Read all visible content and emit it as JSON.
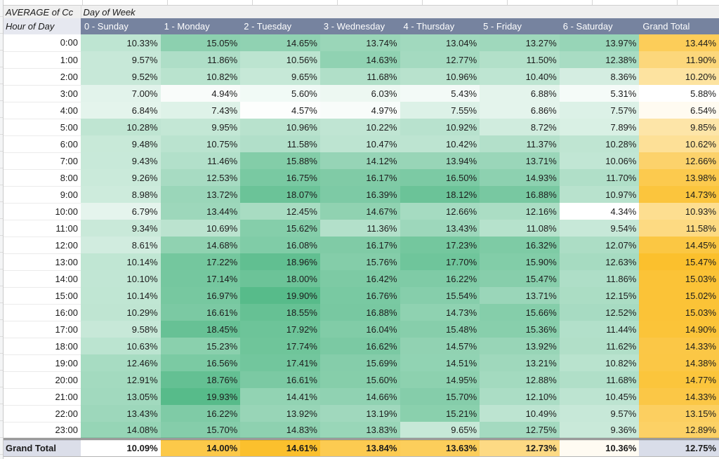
{
  "title": {
    "left": "AVERAGE of Cc",
    "right": "Day of Week"
  },
  "pivot": {
    "corner_header": "Hour of Day",
    "col_headers": [
      "0 - Sunday",
      "1 - Monday",
      "2 - Tuesday",
      "3 - Wednesday",
      "4 - Thursday",
      "5 - Friday",
      "6 - Saturday",
      "Grand Total"
    ],
    "value_format": "percent-2dp",
    "rows": [
      {
        "label": "0:00",
        "values": [
          10.33,
          15.05,
          14.65,
          13.74,
          13.04,
          13.27,
          13.97
        ],
        "total": 13.44
      },
      {
        "label": "1:00",
        "values": [
          9.57,
          11.86,
          10.56,
          14.63,
          12.77,
          11.5,
          12.38
        ],
        "total": 11.9
      },
      {
        "label": "2:00",
        "values": [
          9.52,
          10.82,
          9.65,
          11.68,
          10.96,
          10.4,
          8.36
        ],
        "total": 10.2
      },
      {
        "label": "3:00",
        "values": [
          7.0,
          4.94,
          5.6,
          6.03,
          5.43,
          6.88,
          5.31
        ],
        "total": 5.88
      },
      {
        "label": "4:00",
        "values": [
          6.84,
          7.43,
          4.57,
          4.97,
          7.55,
          6.86,
          7.57
        ],
        "total": 6.54
      },
      {
        "label": "5:00",
        "values": [
          10.28,
          9.95,
          10.96,
          10.22,
          10.92,
          8.72,
          7.89
        ],
        "total": 9.85
      },
      {
        "label": "6:00",
        "values": [
          9.48,
          10.75,
          11.58,
          10.47,
          10.42,
          11.37,
          10.28
        ],
        "total": 10.62
      },
      {
        "label": "7:00",
        "values": [
          9.43,
          11.46,
          15.88,
          14.12,
          13.94,
          13.71,
          10.06
        ],
        "total": 12.66
      },
      {
        "label": "8:00",
        "values": [
          9.26,
          12.53,
          16.75,
          16.17,
          16.5,
          14.93,
          11.7
        ],
        "total": 13.98
      },
      {
        "label": "9:00",
        "values": [
          8.98,
          13.72,
          18.07,
          16.39,
          18.12,
          16.88,
          10.97
        ],
        "total": 14.73
      },
      {
        "label": "10:00",
        "values": [
          6.79,
          13.44,
          12.45,
          14.67,
          12.66,
          12.16,
          4.34
        ],
        "total": 10.93
      },
      {
        "label": "11:00",
        "values": [
          9.34,
          10.69,
          15.62,
          11.36,
          13.43,
          11.08,
          9.54
        ],
        "total": 11.58
      },
      {
        "label": "12:00",
        "values": [
          8.61,
          14.68,
          16.08,
          16.17,
          17.23,
          16.32,
          12.07
        ],
        "total": 14.45
      },
      {
        "label": "13:00",
        "values": [
          10.14,
          17.22,
          18.96,
          15.76,
          17.7,
          15.9,
          12.63
        ],
        "total": 15.47
      },
      {
        "label": "14:00",
        "values": [
          10.1,
          17.14,
          18.0,
          16.42,
          16.22,
          15.47,
          11.86
        ],
        "total": 15.03
      },
      {
        "label": "15:00",
        "values": [
          10.14,
          16.97,
          19.9,
          16.76,
          15.54,
          13.71,
          12.15
        ],
        "total": 15.02
      },
      {
        "label": "16:00",
        "values": [
          10.29,
          16.61,
          18.55,
          16.88,
          14.73,
          15.66,
          12.52
        ],
        "total": 15.03
      },
      {
        "label": "17:00",
        "values": [
          9.58,
          18.45,
          17.92,
          16.04,
          15.48,
          15.36,
          11.44
        ],
        "total": 14.9
      },
      {
        "label": "18:00",
        "values": [
          10.63,
          15.23,
          17.74,
          16.62,
          14.57,
          13.92,
          11.62
        ],
        "total": 14.33
      },
      {
        "label": "19:00",
        "values": [
          12.46,
          16.56,
          17.41,
          15.69,
          14.51,
          13.21,
          10.82
        ],
        "total": 14.38
      },
      {
        "label": "20:00",
        "values": [
          12.91,
          18.76,
          16.61,
          15.6,
          14.95,
          12.88,
          11.68
        ],
        "total": 14.77
      },
      {
        "label": "21:00",
        "values": [
          13.05,
          19.93,
          14.41,
          14.66,
          15.7,
          12.1,
          10.45
        ],
        "total": 14.33
      },
      {
        "label": "22:00",
        "values": [
          13.43,
          16.22,
          13.92,
          13.19,
          15.21,
          10.49,
          9.57
        ],
        "total": 13.15
      },
      {
        "label": "23:00",
        "values": [
          14.08,
          15.7,
          14.83,
          13.83,
          9.65,
          12.75,
          9.36
        ],
        "total": 12.89
      }
    ],
    "grand_total": {
      "label": "Grand Total",
      "values": [
        10.09,
        14.0,
        14.61,
        13.84,
        13.63,
        12.73,
        10.36
      ],
      "total": 12.75
    }
  },
  "heatmap": {
    "day_scale": {
      "min": 4.34,
      "max": 19.93,
      "from": "#FFFFFF",
      "to": "#57BB8A"
    },
    "total_col_scale": {
      "min": 5.88,
      "max": 15.47,
      "from": "#FFFFFF",
      "to": "#FBC02D"
    },
    "total_row_scale": {
      "min": 10.09,
      "max": 14.61,
      "from": "#FFFFFF",
      "to": "#FBC02D"
    }
  },
  "colors": {
    "header_bg": "#76839F",
    "header_text": "#FFFFFF",
    "title_bg": "#EFEFEF",
    "corner_bg": "#E6E8F0",
    "total_label_bg": "#DBDEE9",
    "total_corner_bg": "#D9DDE9"
  }
}
